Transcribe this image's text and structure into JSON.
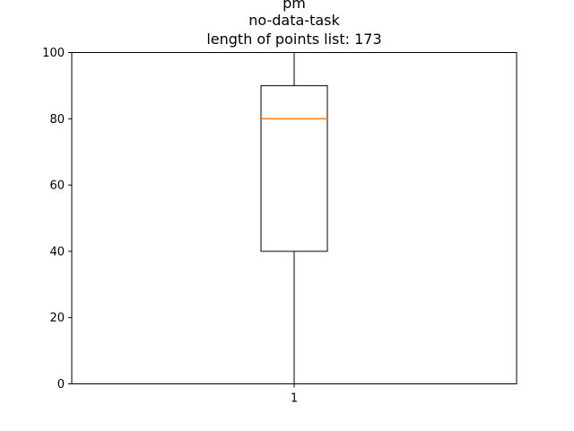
{
  "chart_data": {
    "type": "box",
    "title_lines": [
      "pm",
      "no-data-task",
      "length of points list: 173"
    ],
    "xlabel": "",
    "ylabel": "",
    "categories": [
      "1"
    ],
    "ylim": [
      0,
      100
    ],
    "yticks": [
      0,
      20,
      40,
      60,
      80,
      100
    ],
    "boxes": [
      {
        "category": "1",
        "whisker_low": 0,
        "q1": 40,
        "median": 80,
        "q3": 90,
        "whisker_high": 100
      }
    ],
    "grid": false,
    "colors": {
      "box": "#000000",
      "median": "#ff7f0e"
    }
  }
}
